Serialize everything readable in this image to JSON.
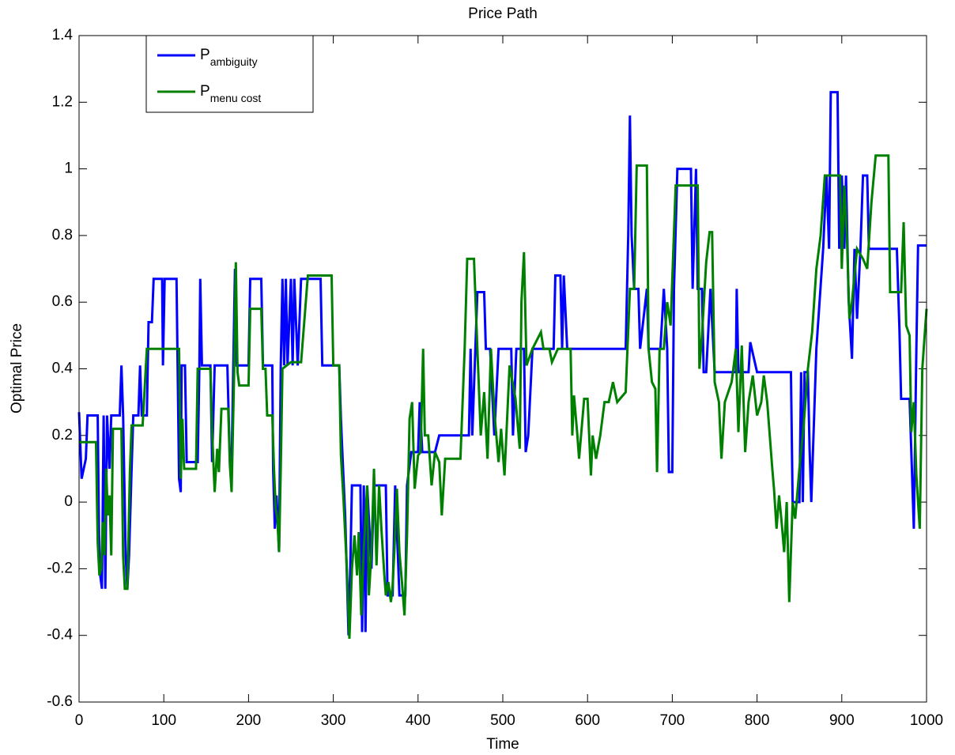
{
  "chart_data": {
    "type": "line",
    "title": "Price Path",
    "x_label": "Time",
    "y_label": "Optimal Price",
    "xlim": [
      0,
      1000
    ],
    "xticks": [
      0,
      100,
      200,
      300,
      400,
      500,
      600,
      700,
      800,
      900,
      1000
    ],
    "ylim": [
      -0.6,
      1.4
    ],
    "yticks": [
      -0.6,
      -0.4,
      -0.2,
      0,
      0.2,
      0.4,
      0.6,
      0.8,
      1,
      1.2,
      1.4
    ],
    "grid": false,
    "legend": "upper left",
    "series": [
      {
        "name": "P",
        "name_subscript": "ambiguity",
        "color": "#0000ff",
        "x": [
          0,
          3,
          8,
          10,
          22,
          24,
          27,
          29,
          31,
          33,
          36,
          38,
          48,
          50,
          52,
          55,
          57,
          59,
          62,
          64,
          70,
          72,
          74,
          80,
          82,
          86,
          88,
          98,
          99,
          101,
          115,
          118,
          120,
          121,
          125,
          127,
          140,
          142,
          143,
          145,
          155,
          157,
          160,
          170,
          175,
          178,
          180,
          182,
          184,
          186,
          200,
          202,
          215,
          217,
          222,
          228,
          229,
          231,
          233,
          236,
          238,
          240,
          242,
          244,
          246,
          250,
          252,
          254,
          258,
          262,
          285,
          287,
          307,
          309,
          311,
          314,
          318,
          320,
          322,
          332,
          334,
          336,
          338,
          340,
          345,
          348,
          362,
          364,
          370,
          373,
          378,
          385,
          387,
          392,
          400,
          402,
          405,
          420,
          425,
          460,
          462,
          464,
          470,
          478,
          480,
          485,
          490,
          495,
          510,
          512,
          516,
          525,
          527,
          530,
          535,
          560,
          562,
          568,
          570,
          572,
          576,
          645,
          648,
          650,
          652,
          655,
          660,
          662,
          670,
          672,
          686,
          690,
          694,
          696,
          700,
          702,
          706,
          722,
          724,
          728,
          730,
          735,
          737,
          740,
          745,
          750,
          775,
          776,
          778,
          790,
          792,
          800,
          840,
          842,
          850,
          852,
          854,
          856,
          860,
          862,
          864,
          870,
          878,
          882,
          885,
          887,
          895,
          897,
          900,
          903,
          905,
          908,
          912,
          915,
          918,
          922,
          925,
          930,
          932,
          965,
          968,
          970,
          980,
          985,
          988,
          990,
          1000
        ],
        "values": [
          0.27,
          0.07,
          0.13,
          0.26,
          0.26,
          -0.2,
          -0.26,
          0.26,
          -0.26,
          0.26,
          0.1,
          0.26,
          0.26,
          0.41,
          0.26,
          -0.16,
          -0.26,
          -0.16,
          0.1,
          0.26,
          0.26,
          0.41,
          0.26,
          0.26,
          0.54,
          0.54,
          0.67,
          0.67,
          0.41,
          0.67,
          0.67,
          0.07,
          0.03,
          0.41,
          0.41,
          0.12,
          0.12,
          0.41,
          0.67,
          0.41,
          0.41,
          0.12,
          0.41,
          0.41,
          0.41,
          0.12,
          0.1,
          0.41,
          0.7,
          0.41,
          0.41,
          0.67,
          0.67,
          0.41,
          0.41,
          0.41,
          0.1,
          -0.08,
          0.02,
          -0.15,
          0.41,
          0.67,
          0.41,
          0.67,
          0.41,
          0.67,
          0.41,
          0.67,
          0.41,
          0.67,
          0.67,
          0.41,
          0.41,
          0.25,
          0.13,
          -0.04,
          -0.4,
          -0.2,
          0.05,
          0.05,
          -0.39,
          0.05,
          -0.39,
          0.05,
          -0.2,
          0.05,
          0.05,
          -0.28,
          -0.28,
          0.05,
          -0.28,
          -0.28,
          0.05,
          0.15,
          0.15,
          0.3,
          0.15,
          0.15,
          0.2,
          0.2,
          0.46,
          0.2,
          0.63,
          0.63,
          0.46,
          0.46,
          0.2,
          0.46,
          0.46,
          0.2,
          0.46,
          0.46,
          0.15,
          0.2,
          0.46,
          0.46,
          0.68,
          0.68,
          0.46,
          0.68,
          0.46,
          0.46,
          0.8,
          1.16,
          0.8,
          0.64,
          0.64,
          0.46,
          0.64,
          0.46,
          0.46,
          0.64,
          0.46,
          0.09,
          0.09,
          0.64,
          1,
          1,
          0.64,
          1,
          0.64,
          0.64,
          0.39,
          0.39,
          0.64,
          0.39,
          0.39,
          0.64,
          0.39,
          0.39,
          0.48,
          0.39,
          0.39,
          0,
          0,
          0.39,
          0,
          0.39,
          0.39,
          0.16,
          0,
          0.46,
          0.76,
          0.98,
          0.76,
          1.23,
          1.23,
          0.76,
          0.98,
          0.76,
          0.98,
          0.61,
          0.43,
          0.76,
          0.55,
          0.76,
          0.98,
          0.98,
          0.76,
          0.76,
          0.52,
          0.31,
          0.31,
          -0.08,
          0.46,
          0.77,
          0.77
        ]
      },
      {
        "name": "P",
        "name_subscript": "menu cost",
        "color": "#008000",
        "x": [
          0,
          2,
          20,
          22,
          24,
          26,
          28,
          30,
          32,
          34,
          36,
          38,
          40,
          50,
          52,
          54,
          57,
          60,
          62,
          75,
          80,
          118,
          120,
          122,
          124,
          138,
          140,
          155,
          157,
          160,
          163,
          165,
          168,
          176,
          178,
          180,
          183,
          185,
          187,
          189,
          200,
          202,
          215,
          217,
          220,
          222,
          228,
          230,
          232,
          234,
          236,
          238,
          240,
          250,
          262,
          270,
          298,
          300,
          307,
          309,
          312,
          316,
          319,
          322,
          325,
          328,
          330,
          333,
          336,
          340,
          342,
          345,
          348,
          351,
          354,
          357,
          360,
          362,
          365,
          368,
          370,
          372,
          375,
          378,
          381,
          384,
          387,
          390,
          393,
          396,
          400,
          403,
          406,
          408,
          412,
          416,
          420,
          425,
          428,
          432,
          450,
          455,
          458,
          466,
          470,
          474,
          478,
          482,
          486,
          490,
          495,
          498,
          502,
          508,
          515,
          520,
          522,
          525,
          528,
          535,
          545,
          548,
          555,
          558,
          565,
          580,
          582,
          584,
          588,
          590,
          596,
          600,
          604,
          606,
          610,
          615,
          620,
          625,
          630,
          635,
          645,
          650,
          655,
          658,
          670,
          672,
          676,
          680,
          682,
          685,
          690,
          694,
          698,
          704,
          730,
          732,
          735,
          740,
          744,
          747,
          750,
          755,
          758,
          762,
          770,
          775,
          778,
          782,
          786,
          790,
          795,
          800,
          805,
          808,
          812,
          818,
          820,
          823,
          826,
          829,
          832,
          835,
          838,
          842,
          845,
          850,
          855,
          860,
          865,
          870,
          875,
          880,
          898,
          900,
          903,
          906,
          909,
          912,
          918,
          925,
          930,
          935,
          940,
          955,
          957,
          970,
          973,
          976,
          980,
          982,
          985,
          988,
          992,
          995,
          1000
        ],
        "values": [
          0.18,
          0.18,
          0.18,
          -0.12,
          -0.22,
          -0.2,
          -0.06,
          -0.16,
          0.1,
          -0.04,
          0.02,
          -0.16,
          0.22,
          0.22,
          -0.16,
          -0.26,
          -0.26,
          0.09,
          0.23,
          0.23,
          0.46,
          0.46,
          0.07,
          0.25,
          0.1,
          0.1,
          0.4,
          0.4,
          0.21,
          0.03,
          0.16,
          0.09,
          0.28,
          0.28,
          0.11,
          0.03,
          0.39,
          0.72,
          0.39,
          0.35,
          0.35,
          0.58,
          0.58,
          0.4,
          0.4,
          0.26,
          0.26,
          0.1,
          -0.02,
          -0.05,
          -0.15,
          0.1,
          0.4,
          0.42,
          0.42,
          0.68,
          0.68,
          0.41,
          0.41,
          0.14,
          0.01,
          -0.2,
          -0.41,
          -0.2,
          -0.1,
          -0.22,
          -0.09,
          -0.34,
          -0.14,
          0.05,
          -0.28,
          -0.15,
          0.1,
          -0.19,
          0.05,
          -0.09,
          -0.21,
          -0.28,
          -0.24,
          -0.3,
          -0.25,
          -0.15,
          0.04,
          -0.15,
          -0.24,
          -0.34,
          -0.1,
          0.25,
          0.3,
          0.04,
          0.14,
          0.15,
          0.46,
          0.2,
          0.2,
          0.05,
          0.15,
          0.12,
          -0.04,
          0.13,
          0.13,
          0.46,
          0.73,
          0.73,
          0.46,
          0.2,
          0.33,
          0.13,
          0.46,
          0.27,
          0.12,
          0.22,
          0.08,
          0.41,
          0.31,
          0.16,
          0.6,
          0.75,
          0.41,
          0.46,
          0.51,
          0.46,
          0.46,
          0.42,
          0.46,
          0.46,
          0.2,
          0.32,
          0.2,
          0.13,
          0.31,
          0.31,
          0.08,
          0.2,
          0.13,
          0.2,
          0.3,
          0.3,
          0.36,
          0.3,
          0.33,
          0.64,
          0.64,
          1.01,
          1.01,
          0.46,
          0.36,
          0.34,
          0.09,
          0.46,
          0.46,
          0.6,
          0.53,
          0.95,
          0.95,
          0.4,
          0.5,
          0.72,
          0.81,
          0.81,
          0.36,
          0.3,
          0.13,
          0.3,
          0.36,
          0.46,
          0.21,
          0.47,
          0.15,
          0.3,
          0.38,
          0.26,
          0.3,
          0.38,
          0.3,
          0.1,
          0.04,
          -0.08,
          0.02,
          -0.06,
          -0.15,
          0,
          -0.3,
          0,
          -0.05,
          0.1,
          0.23,
          0.4,
          0.51,
          0.7,
          0.8,
          0.98,
          0.98,
          0.7,
          0.95,
          0.8,
          0.55,
          0.6,
          0.76,
          0.73,
          0.7,
          0.9,
          1.04,
          1.04,
          0.63,
          0.63,
          0.84,
          0.53,
          0.5,
          0.21,
          0.3,
          0.08,
          -0.08,
          0.4,
          0.58
        ]
      }
    ]
  }
}
